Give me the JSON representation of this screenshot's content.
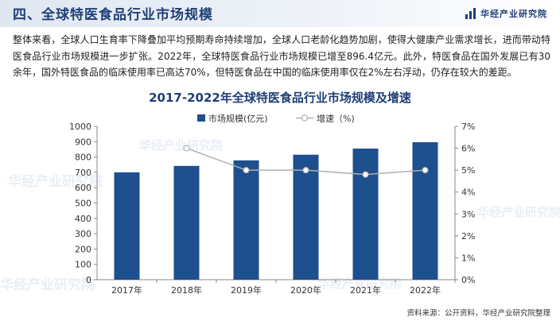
{
  "header": {
    "title": "四、全球特医食品行业市场规模",
    "brand": "华经产业研究院"
  },
  "paragraph": "整体来看，全球人口生育率下降叠加平均预期寿命持续增加，全球人口老龄化趋势加剧，使得大健康产业需求增长，进而带动特医食品行业市场规模进一步扩张。2022年，全球特医食品行业市场规模已增至896.4亿元。此外，特医食品在国外发展已有30余年，国外特医食品的临床使用率已高达70%，但特医食品在中国的临床使用率仅在2%左右浮动，仍存在较大的差距。",
  "watermark": "华经产业研究院",
  "chart_data": {
    "type": "bar",
    "title": "2017-2022年全球特医食品行业市场规模及增速",
    "categories": [
      "2017年",
      "2018年",
      "2019年",
      "2020年",
      "2021年",
      "2022年"
    ],
    "series": [
      {
        "name": "市场规模(亿元)",
        "type": "bar",
        "axis": "left",
        "values": [
          700,
          742,
          778,
          815,
          855,
          896.4
        ]
      },
      {
        "name": "增速（%)",
        "type": "line",
        "axis": "right",
        "values": [
          null,
          6.0,
          5.0,
          5.0,
          4.8,
          5.0
        ]
      }
    ],
    "y_left": {
      "ylim": [
        0,
        1000
      ],
      "ticks": [
        "0",
        "100",
        "200",
        "300",
        "400",
        "500",
        "600",
        "700",
        "800",
        "900",
        "1000"
      ]
    },
    "y_right": {
      "ylim": [
        0,
        7
      ],
      "ticks": [
        "0%",
        "1%",
        "2%",
        "3%",
        "4%",
        "5%",
        "6%",
        "7%"
      ]
    },
    "legend": "top-center",
    "grid": false,
    "colors": {
      "bar": "#1e4f8f",
      "line": "#b0b0b0",
      "marker": "#ffffff"
    }
  },
  "source": "资料来源：公开资料，华经产业研究院整理"
}
